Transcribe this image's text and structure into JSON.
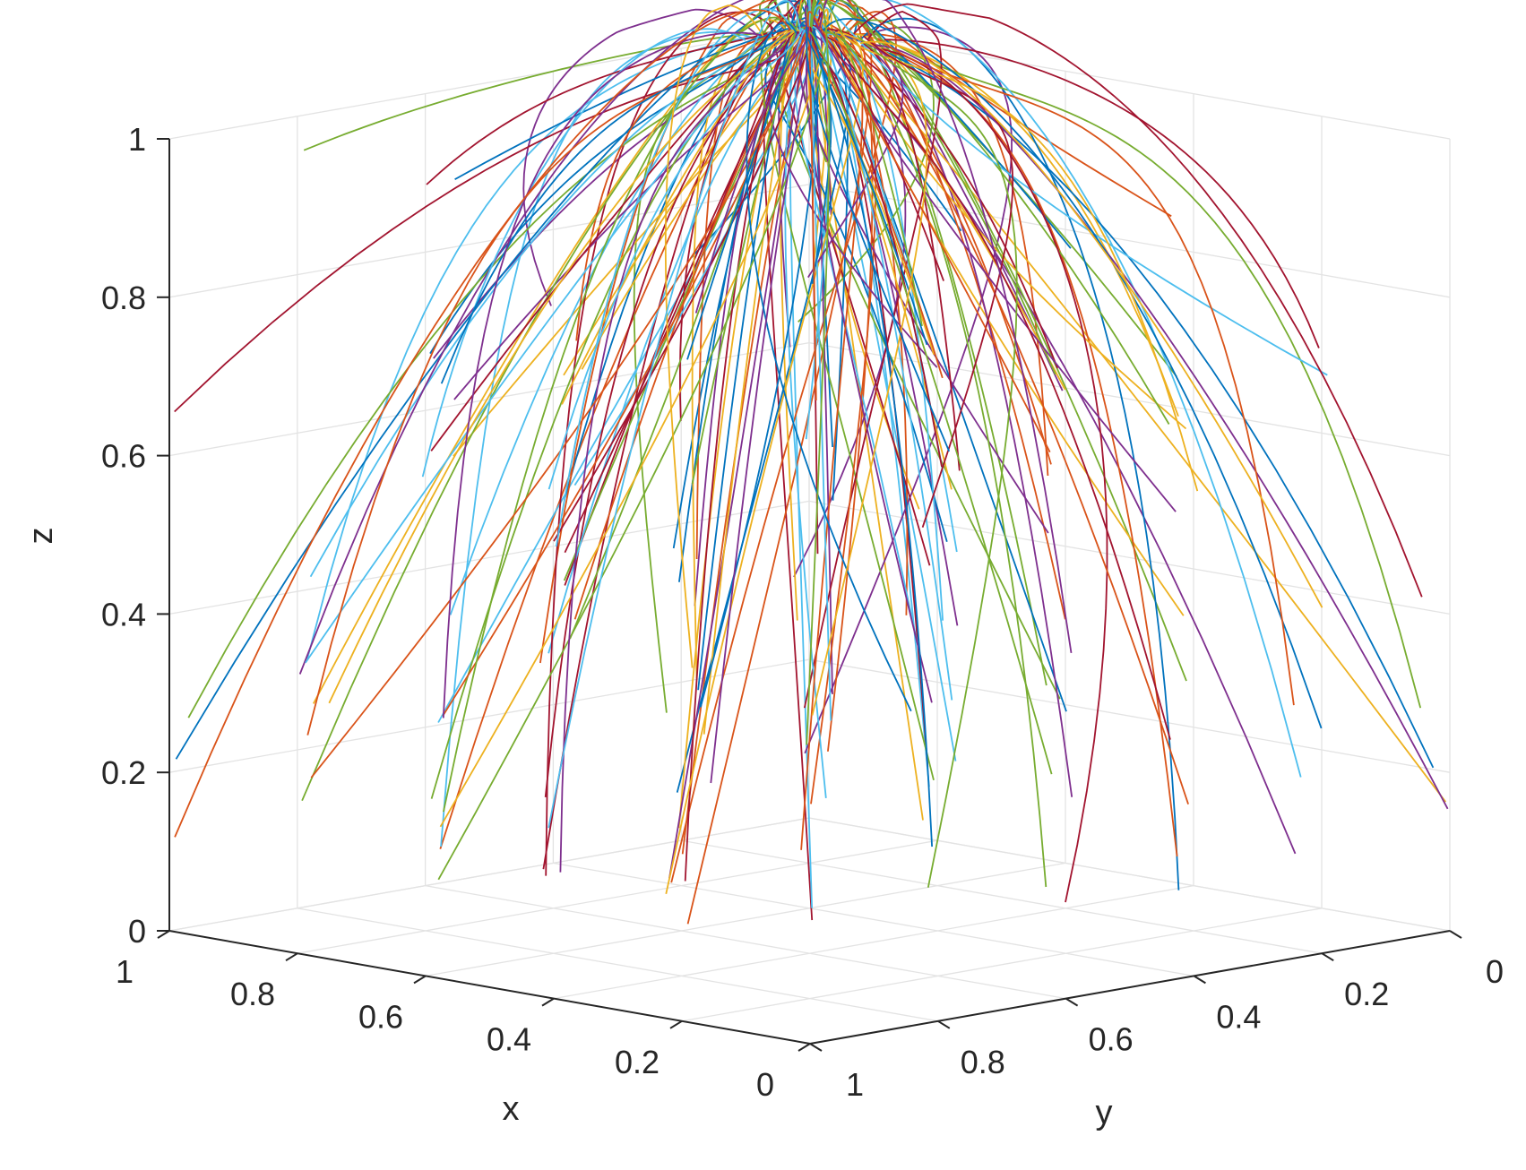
{
  "chart_data": {
    "type": "line",
    "subtype": "3d-trajectories",
    "title": "",
    "xlabel": "x",
    "ylabel": "y",
    "zlabel": "z",
    "xlim": [
      0,
      1
    ],
    "ylim": [
      0,
      1
    ],
    "zlim": [
      0,
      1
    ],
    "grid": true,
    "legend": "none",
    "x_ticks": [
      "0",
      "0.2",
      "0.4",
      "0.6",
      "0.8",
      "1"
    ],
    "y_ticks": [
      "0",
      "0.2",
      "0.4",
      "0.6",
      "0.8",
      "1"
    ],
    "z_ticks": [
      "0",
      "0.2",
      "0.4",
      "0.6",
      "0.8",
      "1"
    ],
    "x_tick_values": [
      0,
      0.2,
      0.4,
      0.6,
      0.8,
      1
    ],
    "y_tick_values": [
      0,
      0.2,
      0.4,
      0.6,
      0.8,
      1
    ],
    "z_tick_values": [
      0,
      0.2,
      0.4,
      0.6,
      0.8,
      1
    ],
    "convergence_point": {
      "x": 1,
      "y": 0,
      "z": 1
    },
    "colors": [
      "#0072BD",
      "#D95319",
      "#EDB120",
      "#7E2F8E",
      "#77AC30",
      "#4DBEEE",
      "#A2142F"
    ],
    "initial_x_values": [
      0,
      0.2,
      0.4,
      0.6,
      0.8,
      1
    ],
    "initial_y_values": [
      0,
      0.2,
      0.4,
      0.6,
      0.8,
      1
    ],
    "initial_z_values": [
      0.1,
      0.3,
      0.5,
      0.7,
      0.9
    ],
    "trajectory_count": 180
  }
}
